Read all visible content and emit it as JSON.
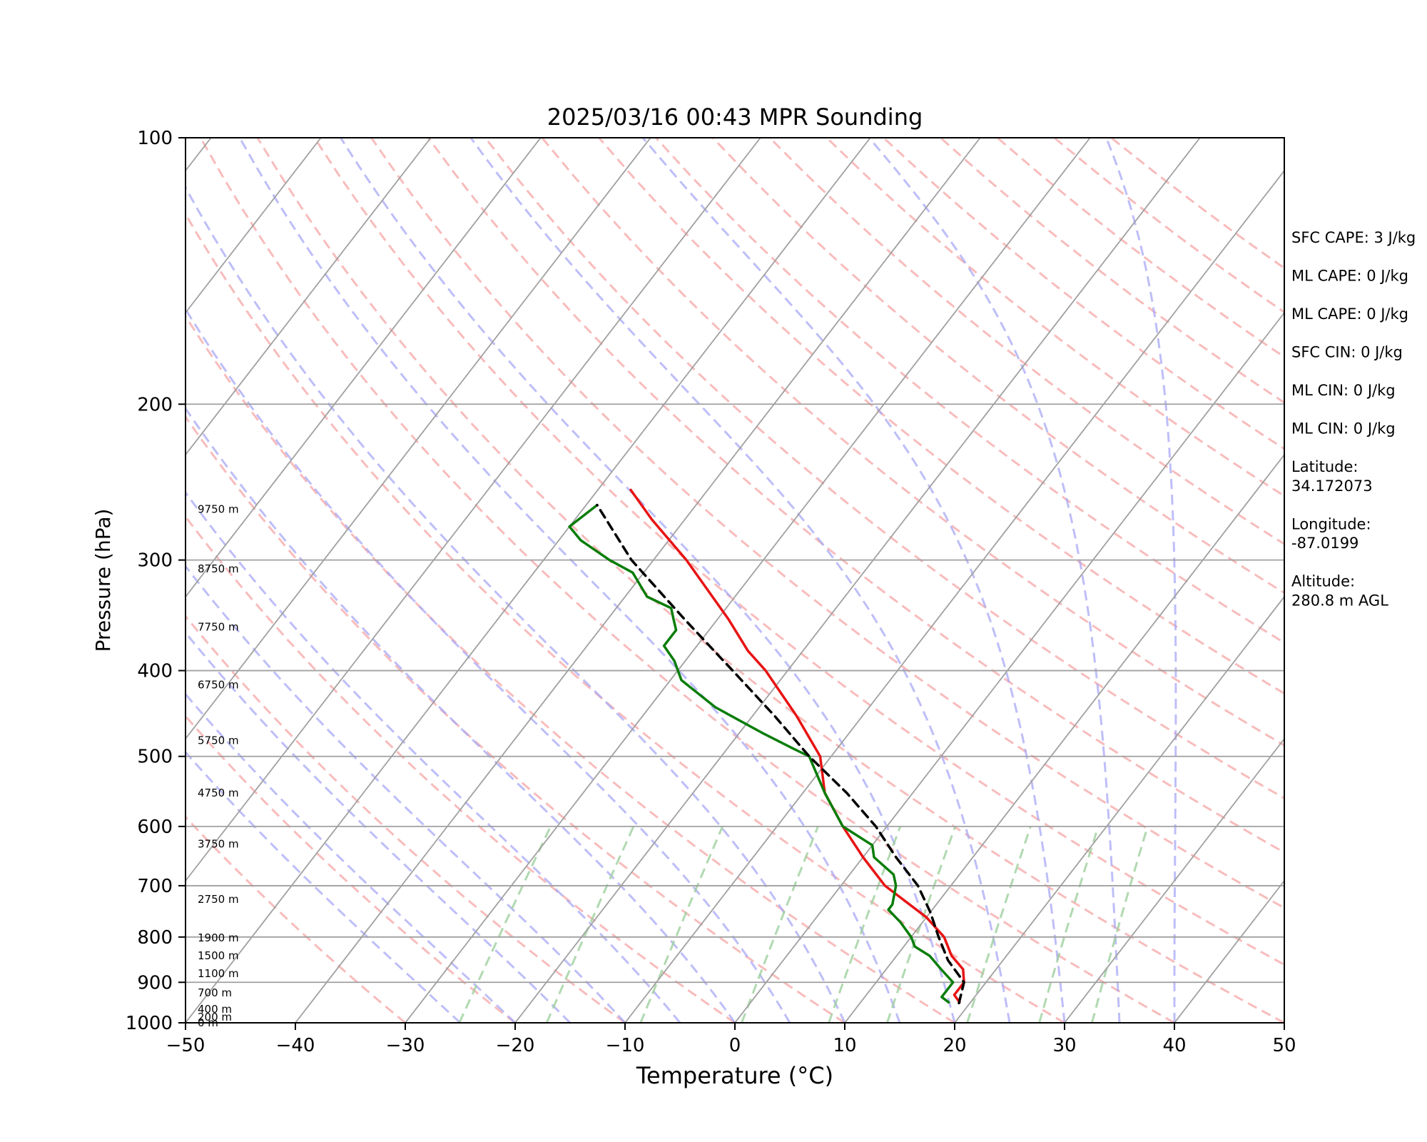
{
  "chart_data": {
    "type": "skew-t",
    "title": "2025/03/16 00:43 MPR Sounding",
    "xlabel": "Temperature (°C)",
    "ylabel": "Pressure (hPa)",
    "xlim": [
      -50,
      50
    ],
    "ylim": [
      1000,
      100
    ],
    "log_y": true,
    "grid": true,
    "x_ticks": [
      -50,
      -40,
      -30,
      -20,
      -10,
      0,
      10,
      20,
      30,
      40,
      50
    ],
    "x_tick_labels": [
      "−50",
      "−40",
      "−30",
      "−20",
      "−10",
      "0",
      "10",
      "20",
      "30",
      "40",
      "50"
    ],
    "y_ticks": [
      100,
      200,
      300,
      400,
      500,
      600,
      700,
      800,
      900,
      1000
    ],
    "y_tick_labels": [
      "100",
      "200",
      "300",
      "400",
      "500",
      "600",
      "700",
      "800",
      "900",
      "1000"
    ],
    "height_labels": [
      {
        "p": 1000,
        "label": "0 m"
      },
      {
        "p": 985,
        "label": "200 m"
      },
      {
        "p": 965,
        "label": "400 m"
      },
      {
        "p": 925,
        "label": "700 m"
      },
      {
        "p": 880,
        "label": "1100 m"
      },
      {
        "p": 840,
        "label": "1500 m"
      },
      {
        "p": 802,
        "label": "1900 m"
      },
      {
        "p": 725,
        "label": "2750 m"
      },
      {
        "p": 628,
        "label": "3750 m"
      },
      {
        "p": 550,
        "label": "4750 m"
      },
      {
        "p": 480,
        "label": "5750 m"
      },
      {
        "p": 415,
        "label": "6750 m"
      },
      {
        "p": 357,
        "label": "7750 m"
      },
      {
        "p": 307,
        "label": "8750 m"
      },
      {
        "p": 263,
        "label": "9750 m"
      }
    ],
    "series": [
      {
        "kind": "temperature",
        "color": "#e81414",
        "points": [
          [
            948,
            19
          ],
          [
            930,
            18
          ],
          [
            900,
            18
          ],
          [
            870,
            17
          ],
          [
            840,
            15
          ],
          [
            800,
            13
          ],
          [
            760,
            10
          ],
          [
            700,
            4
          ],
          [
            650,
            0
          ],
          [
            600,
            -4
          ],
          [
            550,
            -8
          ],
          [
            500,
            -11
          ],
          [
            450,
            -16
          ],
          [
            400,
            -22
          ],
          [
            380,
            -25
          ],
          [
            350,
            -29
          ],
          [
            300,
            -37
          ],
          [
            270,
            -43
          ],
          [
            250,
            -47
          ]
        ]
      },
      {
        "kind": "dewpoint",
        "color": "#0a7d0a",
        "points": [
          [
            948,
            18
          ],
          [
            935,
            17
          ],
          [
            920,
            17
          ],
          [
            900,
            17
          ],
          [
            870,
            15
          ],
          [
            840,
            13
          ],
          [
            820,
            11
          ],
          [
            800,
            10
          ],
          [
            770,
            8
          ],
          [
            745,
            6
          ],
          [
            735,
            6
          ],
          [
            700,
            5
          ],
          [
            680,
            4
          ],
          [
            650,
            1
          ],
          [
            630,
            0
          ],
          [
            600,
            -4
          ],
          [
            550,
            -8
          ],
          [
            500,
            -12
          ],
          [
            490,
            -14
          ],
          [
            470,
            -18
          ],
          [
            440,
            -24
          ],
          [
            410,
            -29
          ],
          [
            390,
            -31
          ],
          [
            375,
            -33
          ],
          [
            360,
            -33
          ],
          [
            350,
            -34
          ],
          [
            340,
            -35
          ],
          [
            330,
            -38
          ],
          [
            310,
            -41
          ],
          [
            300,
            -44
          ],
          [
            285,
            -48
          ],
          [
            275,
            -50
          ],
          [
            260,
            -49
          ]
        ]
      },
      {
        "kind": "parcel",
        "color": "#000000",
        "dashed": true,
        "points": [
          [
            950,
            19
          ],
          [
            900,
            18
          ],
          [
            850,
            15
          ],
          [
            800,
            12.5
          ],
          [
            750,
            10
          ],
          [
            700,
            7
          ],
          [
            650,
            3
          ],
          [
            600,
            -1
          ],
          [
            550,
            -6
          ],
          [
            500,
            -12
          ],
          [
            450,
            -18
          ],
          [
            400,
            -25
          ],
          [
            350,
            -33
          ],
          [
            300,
            -42
          ],
          [
            260,
            -49
          ]
        ]
      }
    ],
    "annotations": [
      {
        "text": "SFC CAPE: 3 J/kg",
        "line": 0
      },
      {
        "text": "ML CAPE: 0 J/kg",
        "line": 1
      },
      {
        "text": "ML CAPE: 0 J/kg",
        "line": 2
      },
      {
        "text": "SFC CIN: 0 J/kg",
        "line": 3
      },
      {
        "text": "ML CIN: 0 J/kg",
        "line": 4
      },
      {
        "text": "ML CIN: 0 J/kg",
        "line": 5
      },
      {
        "text": "Latitude:",
        "line": 6
      },
      {
        "text": "34.172073",
        "line": 6.5
      },
      {
        "text": "Longitude:",
        "line": 7.5
      },
      {
        "text": "-87.0199",
        "line": 8
      },
      {
        "text": "Altitude:",
        "line": 9
      },
      {
        "text": "280.8 m AGL",
        "line": 9.5
      }
    ],
    "reference_lines": {
      "dry_adiabats_color": "#f5a0a0",
      "moist_adiabats_color": "#a8a8f5",
      "mixing_ratio_color": "#9ecf9e",
      "isotherm_color": "#a0a0a0",
      "isobar_color": "#a0a0a0"
    }
  }
}
